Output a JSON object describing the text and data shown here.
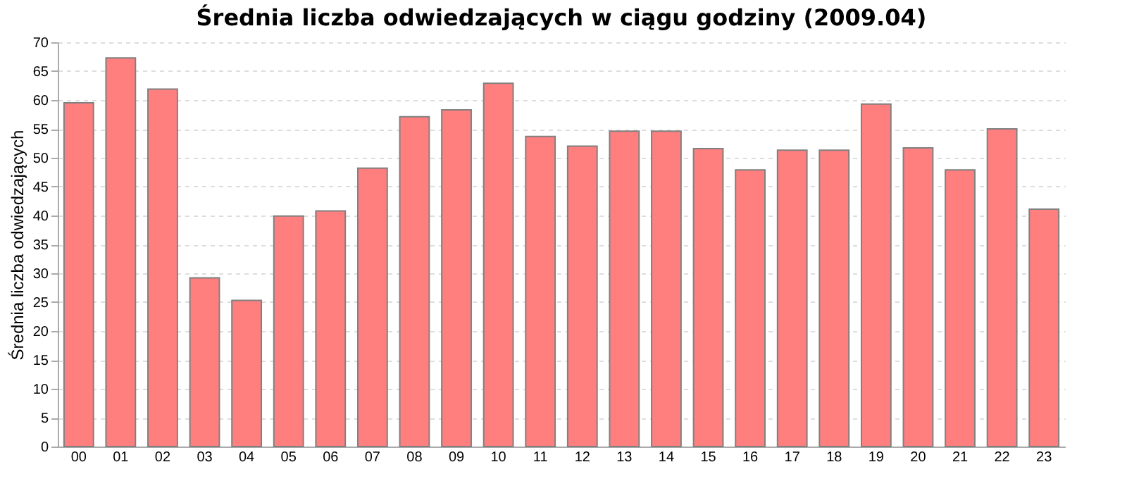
{
  "chart_data": {
    "type": "bar",
    "title": "Średnia liczba odwiedzających w ciągu godziny (2009.04)",
    "ylabel": "Średnia liczba odwiedzających",
    "categories": [
      "00",
      "01",
      "02",
      "03",
      "04",
      "05",
      "06",
      "07",
      "08",
      "09",
      "10",
      "11",
      "12",
      "13",
      "14",
      "15",
      "16",
      "17",
      "18",
      "19",
      "20",
      "21",
      "22",
      "23"
    ],
    "values": [
      59.5,
      67.3,
      61.9,
      29.2,
      25.3,
      39.9,
      40.8,
      48.2,
      57.1,
      58.3,
      62.9,
      53.7,
      52.0,
      54.6,
      54.6,
      51.6,
      47.9,
      51.3,
      51.3,
      59.3,
      51.7,
      47.9,
      55.0,
      41.1
    ],
    "color": "#ff7f7f",
    "ylim": [
      0,
      70
    ],
    "yticks": [
      0,
      5,
      10,
      15,
      20,
      25,
      30,
      35,
      40,
      45,
      50,
      55,
      60,
      65,
      70
    ],
    "grid": "y"
  }
}
